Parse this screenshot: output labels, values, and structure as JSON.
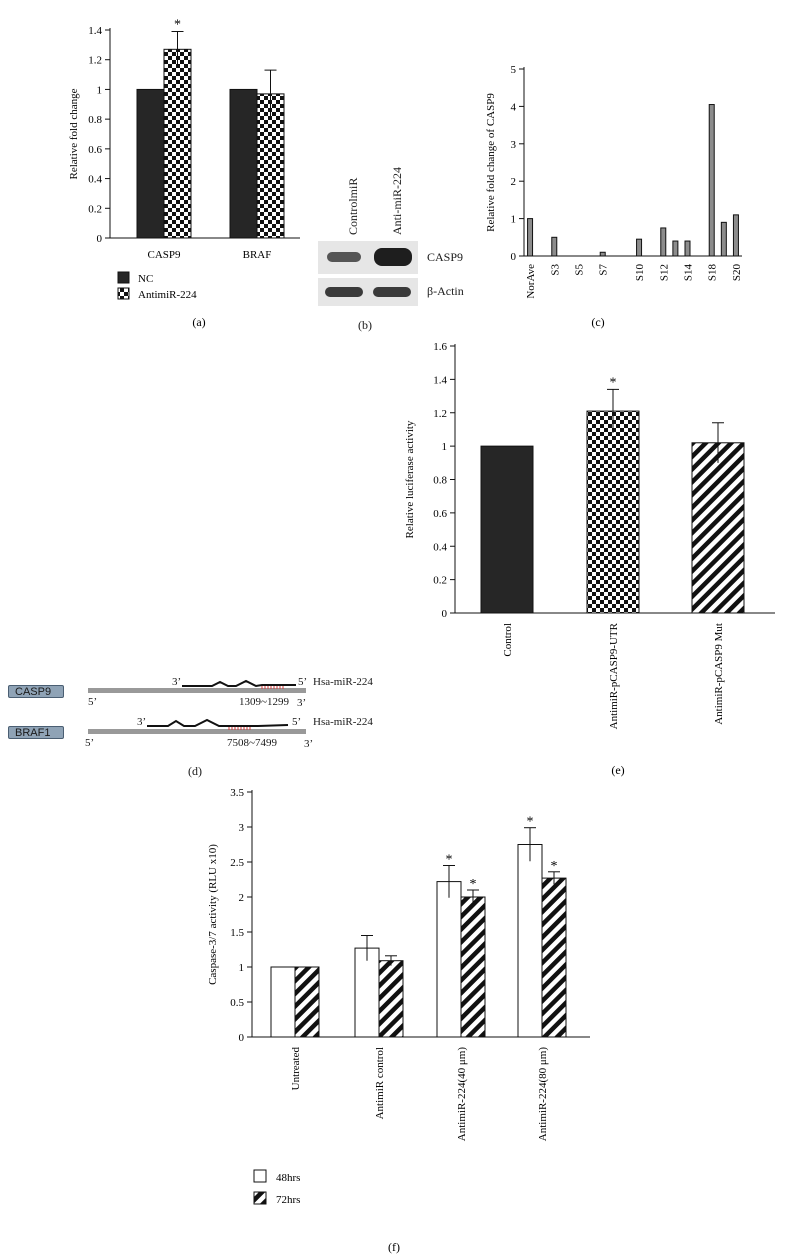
{
  "chart_data": [
    {
      "id": "a",
      "type": "bar",
      "ylabel": "Relative fold change",
      "ylim": [
        0,
        1.4
      ],
      "yticks": [
        "0",
        "0.2",
        "0.4",
        "0.6",
        "0.8",
        "1",
        "1.2",
        "1.4"
      ],
      "categories": [
        "CASP9",
        "BRAF"
      ],
      "series": [
        {
          "name": "NC",
          "values": [
            1.0,
            1.0
          ],
          "errors": [
            0,
            0
          ],
          "pattern": "solid"
        },
        {
          "name": "AntimiR-224",
          "values": [
            1.27,
            0.97
          ],
          "errors": [
            0.12,
            0.16
          ],
          "pattern": "checker"
        }
      ],
      "annotations": [
        {
          "text": "*",
          "category": "CASP9",
          "series": "AntimiR-224"
        }
      ],
      "legend": "bottom-left",
      "panel_label": "(a)"
    },
    {
      "id": "c",
      "type": "bar",
      "ylabel": "Relative fold change of CASP9",
      "ylim": [
        0,
        5
      ],
      "yticks": [
        "0",
        "1",
        "2",
        "3",
        "4",
        "5"
      ],
      "categories": [
        "NorAve",
        "S3",
        "S5",
        "S7",
        "S10",
        "S12",
        "S14",
        "S18",
        "S20"
      ],
      "bars": [
        {
          "x": 0,
          "value": 1.0
        },
        {
          "x": 2,
          "value": 0.5
        },
        {
          "x": 6,
          "value": 0.1
        },
        {
          "x": 9,
          "value": 0.45
        },
        {
          "x": 11,
          "value": 0.75
        },
        {
          "x": 12,
          "value": 0.4
        },
        {
          "x": 13,
          "value": 0.4
        },
        {
          "x": 15,
          "value": 4.05
        },
        {
          "x": 16,
          "value": 0.9
        },
        {
          "x": 17,
          "value": 1.1
        }
      ],
      "label_positions": [
        0,
        2,
        4,
        6,
        9,
        11,
        13,
        15,
        17
      ],
      "slots": 18,
      "panel_label": "(c)"
    },
    {
      "id": "e",
      "type": "bar",
      "ylabel": "Relative luciferase activity",
      "ylim": [
        0,
        1.6
      ],
      "yticks": [
        "0",
        "0.2",
        "0.4",
        "0.6",
        "0.8",
        "1",
        "1.2",
        "1.4",
        "1.6"
      ],
      "categories": [
        "Control",
        "AntimiR-pCASP9-UTR",
        "AntimiR-pCASP9 Mut"
      ],
      "values": [
        1.0,
        1.21,
        1.02
      ],
      "errors": [
        0,
        0.13,
        0.12
      ],
      "patterns": [
        "solid",
        "checker",
        "hatch"
      ],
      "annotations": [
        {
          "text": "*",
          "category": "AntimiR-pCASP9-UTR"
        }
      ],
      "panel_label": "(e)"
    },
    {
      "id": "f",
      "type": "bar",
      "ylabel": "Caspase-3/7 activity (RLU x10)",
      "ylim": [
        0,
        3.5
      ],
      "yticks": [
        "0",
        "0.5",
        "1",
        "1.5",
        "2",
        "2.5",
        "3",
        "3.5"
      ],
      "categories": [
        "Untreated",
        "AntimiR control",
        "AntimiR-224(40 μm)",
        "AntimiR-224(80 μm)"
      ],
      "series": [
        {
          "name": "48hrs",
          "values": [
            1.0,
            1.27,
            2.22,
            2.75
          ],
          "errors": [
            0,
            0.18,
            0.23,
            0.24
          ],
          "pattern": "open"
        },
        {
          "name": "72hrs",
          "values": [
            1.0,
            1.09,
            2.0,
            2.27
          ],
          "errors": [
            0,
            0.07,
            0.1,
            0.09
          ],
          "pattern": "hatch"
        }
      ],
      "annotations": [
        {
          "text": "*",
          "category": "AntimiR-224(40 μm)",
          "series": "48hrs"
        },
        {
          "text": "*",
          "category": "AntimiR-224(40 μm)",
          "series": "72hrs"
        },
        {
          "text": "*",
          "category": "AntimiR-224(80 μm)",
          "series": "48hrs"
        },
        {
          "text": "*",
          "category": "AntimiR-224(80 μm)",
          "series": "72hrs"
        }
      ],
      "legend": "bottom-left",
      "panel_label": "(f)"
    }
  ],
  "blot": {
    "lanes": [
      "ControlmiR",
      "Anti-miR-224"
    ],
    "rows": [
      "CASP9",
      "β-Actin"
    ],
    "panel_label": "(b)"
  },
  "diagram": {
    "panel_label": "(d)",
    "rows": [
      {
        "gene": "CASP9",
        "mirna": "Hsa-miR-224",
        "position": "1309~1299",
        "mirna_3": "3’",
        "mirna_5": "5’",
        "mrna_5": "5’",
        "mrna_3": "3’"
      },
      {
        "gene": "BRAF1",
        "mirna": "Hsa-miR-224",
        "position": "7508~7499",
        "mirna_3": "3’",
        "mirna_5": "5’",
        "mrna_5": "5’",
        "mrna_3": "3’"
      }
    ]
  },
  "colors": {
    "bar_dark": "#262626",
    "bar_gray": "#8c8c8c",
    "seed_pairing": "#d23a3a",
    "tag_fill": "#8fa3b6"
  }
}
